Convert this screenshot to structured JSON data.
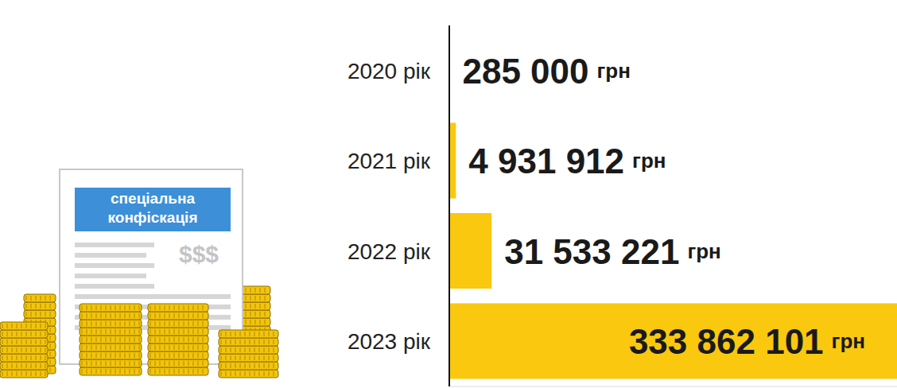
{
  "chart_data": {
    "type": "bar",
    "orientation": "horizontal",
    "categories": [
      "2020 рік",
      "2021 рік",
      "2022 рік",
      "2023 рік"
    ],
    "values": [
      285000,
      4931912,
      31533221,
      333862101
    ],
    "value_labels": [
      "285 000 грн",
      "4 931 912 грн",
      "31 533 221 грн",
      "333 862 101 грн"
    ],
    "data_labels": true,
    "color": "#f9c80f",
    "xlim": [
      0,
      333862101
    ],
    "tick_labels": "y",
    "grid": false,
    "annotations": [
      "спеціальна",
      "конфіскація",
      "$$$"
    ]
  }
}
